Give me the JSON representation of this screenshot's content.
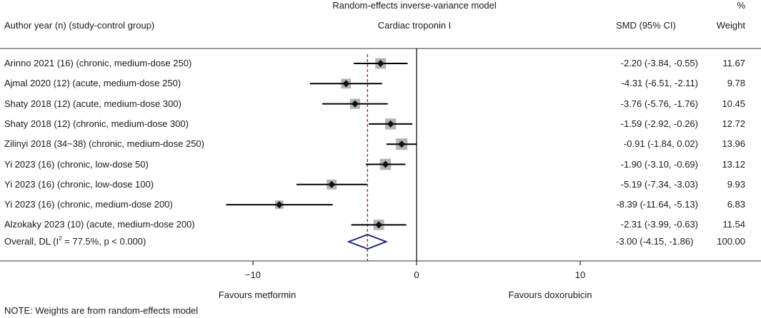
{
  "header": {
    "model": "Random-effects inverse-variance model",
    "pct": "%",
    "col_study": "Author year (n) (study-control group)",
    "col_outcome": "Cardiac troponin I",
    "col_smd": "SMD (95% CI)",
    "col_weight": "Weight"
  },
  "footer": {
    "favours_left": "Favours metformin",
    "favours_right": "Favours doxorubicin",
    "note": "NOTE: Weights are from random-effects model"
  },
  "overall": {
    "label_prefix": "Overall, DL (I",
    "label_sup": "2",
    "label_suffix": " = 77.5%, p < 0.000)",
    "ci_text": "-3.00 (-4.15, -1.86)",
    "weight_text": "100.00"
  },
  "colors": {
    "marker": "#111111",
    "weight_box": "#b3b3b3",
    "ci_line": "#000000",
    "overall_diamond": "#1f2a80",
    "overall_line": "#8b1a1a"
  },
  "chart_data": {
    "type": "forest",
    "xlim": [
      -20,
      18
    ],
    "xticks": [
      -10,
      0,
      10
    ],
    "null_line": 0,
    "studies": [
      {
        "label": "Arinno 2021 (16) (chronic, medium-dose 250)",
        "smd": -2.2,
        "lo": -3.84,
        "hi": -0.55,
        "weight": 11.67,
        "ci_text": "-2.20 (-3.84, -0.55)",
        "weight_text": "11.67"
      },
      {
        "label": "Ajmal  2020 (12) (acute, medium-dose 250)",
        "smd": -4.31,
        "lo": -6.51,
        "hi": -2.11,
        "weight": 9.78,
        "ci_text": "-4.31 (-6.51, -2.11)",
        "weight_text": "9.78"
      },
      {
        "label": "Shaty 2018 (12) (acute, medium-dose 300)",
        "smd": -3.76,
        "lo": -5.76,
        "hi": -1.76,
        "weight": 10.45,
        "ci_text": "-3.76 (-5.76, -1.76)",
        "weight_text": "10.45"
      },
      {
        "label": "Shaty 2018 (12) (chronic, medium-dose 300)",
        "smd": -1.59,
        "lo": -2.92,
        "hi": -0.26,
        "weight": 12.72,
        "ci_text": "-1.59 (-2.92, -0.26)",
        "weight_text": "12.72"
      },
      {
        "label": "Zilinyi 2018 (34~38) (chronic, medium-dose 250)",
        "smd": -0.91,
        "lo": -1.84,
        "hi": 0.02,
        "weight": 13.96,
        "ci_text": "-0.91 (-1.84, 0.02)",
        "weight_text": "13.96"
      },
      {
        "label": "Yi 2023 (16) (chronic, low-dose 50)",
        "smd": -1.9,
        "lo": -3.1,
        "hi": -0.69,
        "weight": 13.12,
        "ci_text": "-1.90 (-3.10, -0.69)",
        "weight_text": "13.12"
      },
      {
        "label": "Yi 2023 (16) (chronic, low-dose 100)",
        "smd": -5.19,
        "lo": -7.34,
        "hi": -3.03,
        "weight": 9.93,
        "ci_text": "-5.19 (-7.34, -3.03)",
        "weight_text": "9.93"
      },
      {
        "label": "Yi 2023 (16) (chronic, medium-dose 200)",
        "smd": -8.39,
        "lo": -11.64,
        "hi": -5.13,
        "weight": 6.83,
        "ci_text": "-8.39 (-11.64, -5.13)",
        "weight_text": "6.83"
      },
      {
        "label": "Alzokaky 2023 (10) (acute, medium-dose 200)",
        "smd": -2.31,
        "lo": -3.99,
        "hi": -0.63,
        "weight": 11.54,
        "ci_text": "-2.31 (-3.99, -0.63)",
        "weight_text": "11.54"
      }
    ],
    "overall": {
      "smd": -3.0,
      "lo": -4.15,
      "hi": -1.86
    }
  }
}
